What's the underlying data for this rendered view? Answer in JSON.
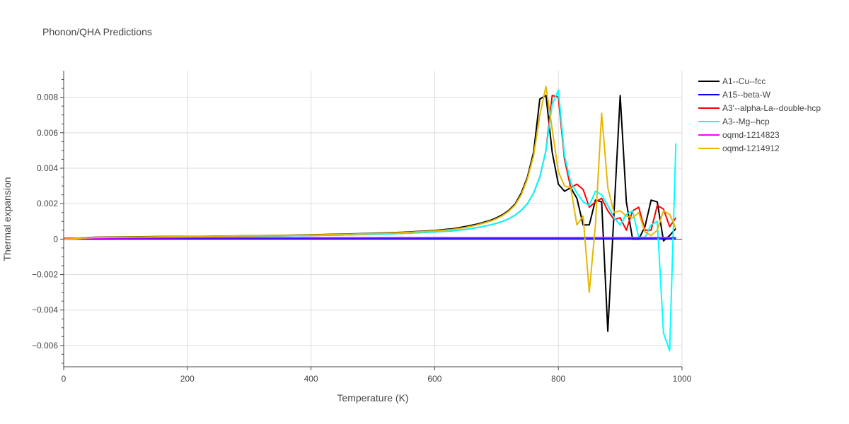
{
  "chart_data": {
    "type": "line",
    "title": "Phonon/QHA Predictions",
    "xlabel": "Temperature (K)",
    "ylabel": "Thermal expansion",
    "xlim": [
      0,
      1000
    ],
    "ylim": [
      -0.0072,
      0.0095
    ],
    "xticks": [
      0,
      200,
      400,
      600,
      800,
      1000
    ],
    "xtick_labels": [
      "0",
      "200",
      "400",
      "600",
      "800",
      "1000"
    ],
    "yticks": [
      -0.006,
      -0.004,
      -0.002,
      0,
      0.002,
      0.004,
      0.006,
      0.008
    ],
    "ytick_labels": [
      "−0.006",
      "−0.004",
      "−0.002",
      "0",
      "0.002",
      "0.004",
      "0.006",
      "0.008"
    ],
    "grid": true,
    "legend_position": "right",
    "series": [
      {
        "name": "A1--Cu--fcc",
        "color": "#000000",
        "x": [
          0,
          10,
          20,
          30,
          50,
          100,
          150,
          200,
          250,
          300,
          350,
          400,
          450,
          500,
          550,
          600,
          630,
          650,
          670,
          690,
          700,
          710,
          720,
          730,
          740,
          750,
          760,
          770,
          780,
          790,
          800,
          810,
          820,
          830,
          840,
          850,
          860,
          870,
          880,
          890,
          900,
          910,
          920,
          930,
          940,
          950,
          960,
          970,
          980,
          990
        ],
        "y": [
          0,
          1e-05,
          4e-05,
          7e-05,
          0.0001,
          0.00012,
          0.00014,
          0.00015,
          0.00017,
          0.00019,
          0.00021,
          0.00024,
          0.00028,
          0.00033,
          0.00039,
          0.00049,
          0.00059,
          0.00071,
          0.00086,
          0.00106,
          0.0012,
          0.00138,
          0.00163,
          0.00198,
          0.0026,
          0.0035,
          0.0049,
          0.0079,
          0.0081,
          0.0049,
          0.0031,
          0.0027,
          0.0029,
          0.0023,
          0.0008,
          0.0008,
          0.0022,
          0.0021,
          -0.0052,
          0.0015,
          0.0081,
          0.0021,
          0.0,
          0.0,
          0.0007,
          0.0022,
          0.0021,
          -0.0001,
          0.0002,
          0.0006
        ]
      },
      {
        "name": "A15--beta-W",
        "color": "#0000ff",
        "x": [
          0,
          100,
          200,
          300,
          400,
          500,
          600,
          700,
          800,
          900,
          990
        ],
        "y": [
          0,
          1e-05,
          1e-05,
          1e-05,
          1e-05,
          1e-05,
          1e-05,
          1e-05,
          1e-05,
          1e-05,
          1e-05
        ]
      },
      {
        "name": "A3'--alpha-La--double-hcp",
        "color": "#ff0000",
        "x": [
          0,
          10,
          20,
          30,
          50,
          100,
          150,
          200,
          250,
          300,
          350,
          400,
          450,
          500,
          550,
          600,
          630,
          650,
          670,
          690,
          700,
          710,
          720,
          730,
          740,
          750,
          760,
          770,
          780,
          790,
          800,
          810,
          820,
          830,
          840,
          850,
          860,
          870,
          880,
          890,
          900,
          910,
          920,
          930,
          940,
          950,
          960,
          970,
          980,
          990
        ],
        "y": [
          0,
          1e-05,
          2e-05,
          4e-05,
          6e-05,
          8e-05,
          0.0001,
          0.00012,
          0.00014,
          0.00016,
          0.00018,
          0.0002,
          0.00023,
          0.00027,
          0.00032,
          0.0004,
          0.00047,
          0.00055,
          0.00066,
          0.0008,
          0.00089,
          0.001,
          0.00115,
          0.00135,
          0.00162,
          0.002,
          0.0026,
          0.0035,
          0.005,
          0.0081,
          0.008,
          0.0045,
          0.0029,
          0.0031,
          0.0028,
          0.0018,
          0.0021,
          0.0023,
          0.0016,
          0.0011,
          0.0012,
          0.0005,
          0.0016,
          0.0018,
          0.0005,
          0.0005,
          0.0019,
          0.0017,
          0.0007,
          0.0012
        ]
      },
      {
        "name": "A3--Mg--hcp",
        "color": "#00ffff",
        "x": [
          0,
          10,
          20,
          30,
          50,
          100,
          150,
          200,
          250,
          300,
          350,
          400,
          450,
          500,
          550,
          600,
          630,
          650,
          670,
          690,
          700,
          710,
          720,
          730,
          740,
          750,
          760,
          770,
          780,
          790,
          800,
          810,
          820,
          830,
          840,
          850,
          860,
          870,
          880,
          890,
          900,
          910,
          920,
          930,
          940,
          950,
          960,
          970,
          980,
          990
        ],
        "y": [
          0,
          1e-05,
          2e-05,
          4e-05,
          6e-05,
          8e-05,
          0.0001,
          0.00012,
          0.00014,
          0.00016,
          0.00018,
          0.0002,
          0.00023,
          0.00027,
          0.00032,
          0.0004,
          0.00047,
          0.00055,
          0.00066,
          0.0008,
          0.00089,
          0.001,
          0.00115,
          0.00135,
          0.00162,
          0.002,
          0.0026,
          0.0035,
          0.005,
          0.0076,
          0.0084,
          0.0047,
          0.0032,
          0.0026,
          0.0021,
          0.0019,
          0.0027,
          0.0025,
          0.0019,
          0.0012,
          0.0008,
          0.0014,
          0.0016,
          0.0001,
          0.0001,
          0.0008,
          0.001,
          -0.0053,
          -0.0063,
          0.0054
        ]
      },
      {
        "name": "oqmd-1214823",
        "color": "#ff00ff",
        "x": [
          0,
          100,
          200,
          300,
          400,
          500,
          600,
          700,
          800,
          900,
          990
        ],
        "y": [
          5e-05,
          7e-05,
          8e-05,
          8e-05,
          8e-05,
          8e-05,
          9e-05,
          9e-05,
          9e-05,
          9e-05,
          9e-05
        ]
      },
      {
        "name": "oqmd-1214912",
        "color": "#e6b800",
        "x": [
          0,
          10,
          20,
          30,
          50,
          100,
          150,
          200,
          250,
          300,
          350,
          400,
          450,
          500,
          550,
          600,
          630,
          650,
          670,
          690,
          700,
          710,
          720,
          730,
          740,
          750,
          760,
          770,
          780,
          790,
          800,
          810,
          820,
          830,
          840,
          850,
          860,
          870,
          880,
          890,
          900,
          910,
          920,
          930,
          940,
          950,
          960,
          970,
          980,
          990
        ],
        "y": [
          0,
          1e-05,
          3e-05,
          6e-05,
          9e-05,
          0.00011,
          0.00013,
          0.00014,
          0.00016,
          0.00018,
          0.0002,
          0.00023,
          0.00027,
          0.00031,
          0.00037,
          0.00046,
          0.00055,
          0.00066,
          0.00081,
          0.00101,
          0.00115,
          0.00133,
          0.00158,
          0.00192,
          0.0025,
          0.0034,
          0.0047,
          0.007,
          0.0086,
          0.0062,
          0.0038,
          0.003,
          0.0029,
          0.0008,
          0.0013,
          -0.003,
          0.0008,
          0.0071,
          0.0029,
          0.0015,
          0.0016,
          0.0013,
          0.0012,
          0.0015,
          0.0004,
          0.0002,
          0.0005,
          0.0016,
          0.0014,
          0.0006
        ]
      }
    ]
  }
}
